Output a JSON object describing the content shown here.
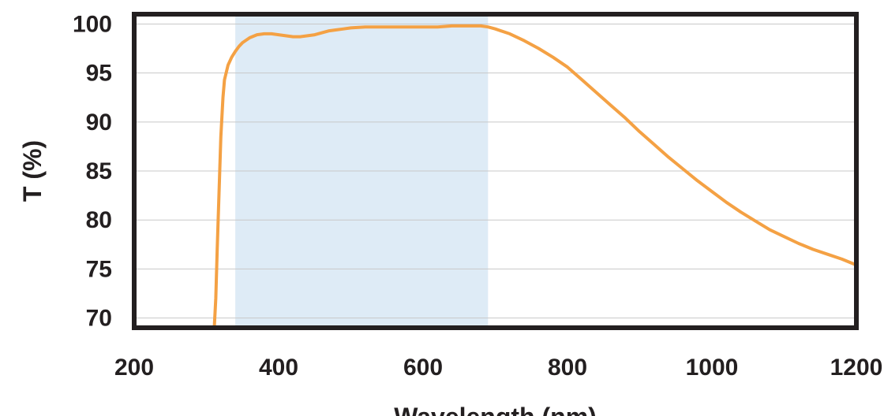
{
  "chart_data": {
    "type": "line",
    "title": "",
    "xlabel": "Wavelength (nm)",
    "ylabel": "T (%)",
    "xlim": [
      200,
      1200
    ],
    "ylim": [
      69,
      101
    ],
    "x_ticks": [
      200,
      400,
      600,
      800,
      1000,
      1200
    ],
    "y_ticks": [
      70,
      75,
      80,
      85,
      90,
      95,
      100
    ],
    "x_tick_labels": [
      "200",
      "400",
      "600",
      "800",
      "1000",
      "1200"
    ],
    "y_tick_labels": [
      "70",
      "75",
      "80",
      "85",
      "90",
      "95",
      "100"
    ],
    "grid": "horizontal",
    "legend": "none",
    "shaded_band": {
      "x_start": 340,
      "x_end": 690,
      "color": "#deebf6"
    },
    "series": [
      {
        "color": "#f4a144",
        "x": [
          311,
          313,
          315,
          318,
          320,
          323,
          325,
          330,
          335,
          340,
          345,
          350,
          360,
          370,
          380,
          390,
          400,
          410,
          420,
          430,
          440,
          450,
          460,
          470,
          480,
          490,
          500,
          520,
          540,
          560,
          580,
          600,
          620,
          640,
          660,
          680,
          690,
          700,
          720,
          740,
          760,
          780,
          800,
          820,
          840,
          860,
          880,
          900,
          920,
          940,
          960,
          980,
          1000,
          1020,
          1040,
          1060,
          1080,
          1100,
          1120,
          1140,
          1160,
          1180,
          1200
        ],
        "y": [
          69.2,
          72.0,
          77.0,
          84.0,
          88.5,
          92.5,
          94.3,
          95.8,
          96.6,
          97.2,
          97.7,
          98.1,
          98.6,
          98.9,
          99.0,
          99.0,
          98.9,
          98.8,
          98.7,
          98.7,
          98.8,
          98.9,
          99.1,
          99.3,
          99.4,
          99.5,
          99.6,
          99.7,
          99.7,
          99.7,
          99.7,
          99.7,
          99.7,
          99.8,
          99.8,
          99.8,
          99.7,
          99.5,
          99.0,
          98.3,
          97.5,
          96.6,
          95.6,
          94.3,
          93.0,
          91.7,
          90.4,
          89.0,
          87.7,
          86.4,
          85.2,
          84.0,
          82.9,
          81.8,
          80.8,
          79.9,
          79.0,
          78.3,
          77.6,
          77.0,
          76.5,
          76.0,
          75.4
        ]
      }
    ]
  }
}
